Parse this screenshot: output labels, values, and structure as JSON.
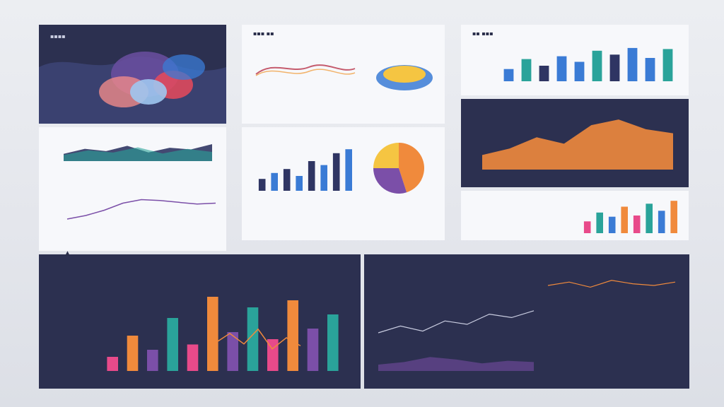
{
  "colors": {
    "page_background": "#e6e8ee",
    "light_panel": "#f7f8fb",
    "dark_panel": "#2c3050",
    "navy": "#2f3563",
    "blue": "#3a7bd5",
    "teal": "#2aa39a",
    "orange": "#f08a3c",
    "pink": "#e84a8a",
    "purple": "#7b4fa8",
    "yellow": "#f5c542"
  },
  "icons": {
    "bottom_left_corner": "triangle-marker-icon",
    "bottom_panel_left": "axis-marker-icon"
  },
  "chart_data": [
    {
      "type": "area",
      "series": [
        {
          "values": [
            34,
            58,
            47,
            72,
            41,
            63,
            55,
            80
          ]
        }
      ],
      "ylim": [
        0,
        100
      ]
    },
    {
      "type": "line",
      "series": [
        {
          "values": [
            8,
            12,
            18,
            26,
            30,
            29,
            27,
            25,
            26
          ]
        }
      ],
      "ylim": [
        0,
        40
      ]
    },
    {
      "type": "line",
      "series": [
        {
          "values": [
            40,
            55,
            38,
            62,
            30,
            48,
            35
          ]
        }
      ],
      "ylim": [
        0,
        80
      ]
    },
    {
      "type": "area",
      "series": [
        {
          "values": [
            20,
            35,
            28,
            45,
            25,
            40,
            30
          ]
        }
      ],
      "ylim": [
        0,
        60
      ]
    },
    {
      "type": "bar",
      "values": [
        12,
        18,
        22,
        15,
        30,
        26,
        38,
        42
      ],
      "ylim": [
        0,
        50
      ]
    },
    {
      "type": "pie",
      "values": [
        45,
        30,
        25
      ]
    },
    {
      "type": "line",
      "series": [
        {
          "values": [
            10,
            14,
            28,
            35,
            24,
            12,
            6,
            3
          ]
        }
      ],
      "ylim": [
        0,
        40
      ]
    },
    {
      "type": "bar",
      "values": [
        22,
        40,
        28,
        45,
        35,
        55,
        48,
        60,
        42,
        58
      ],
      "ylim": [
        0,
        70
      ]
    },
    {
      "type": "area",
      "series": [
        {
          "values": [
            18,
            26,
            40,
            32,
            55,
            62,
            50,
            45
          ]
        }
      ],
      "ylim": [
        0,
        70
      ]
    },
    {
      "type": "bar",
      "values": [
        20,
        35,
        28,
        45,
        30,
        50,
        38,
        55
      ],
      "ylim": [
        0,
        60
      ]
    },
    {
      "type": "bar",
      "values": [
        8,
        20,
        12,
        30,
        15,
        42,
        22,
        36,
        18,
        40,
        24,
        32
      ],
      "ylim": [
        0,
        50
      ]
    },
    {
      "type": "line",
      "series": [
        {
          "values": [
            20,
            28,
            22,
            34,
            30,
            42,
            38,
            46
          ]
        },
        {
          "values": [
            10,
            14,
            12,
            18,
            26,
            20,
            24,
            22
          ]
        }
      ],
      "ylim": [
        0,
        50
      ]
    },
    {
      "type": "line",
      "series": [
        {
          "values": [
            30,
            34,
            28,
            36,
            32,
            30,
            34
          ]
        },
        {
          "values": [
            10,
            14,
            22,
            18,
            12,
            16,
            14
          ]
        }
      ],
      "ylim": [
        0,
        50
      ]
    }
  ]
}
